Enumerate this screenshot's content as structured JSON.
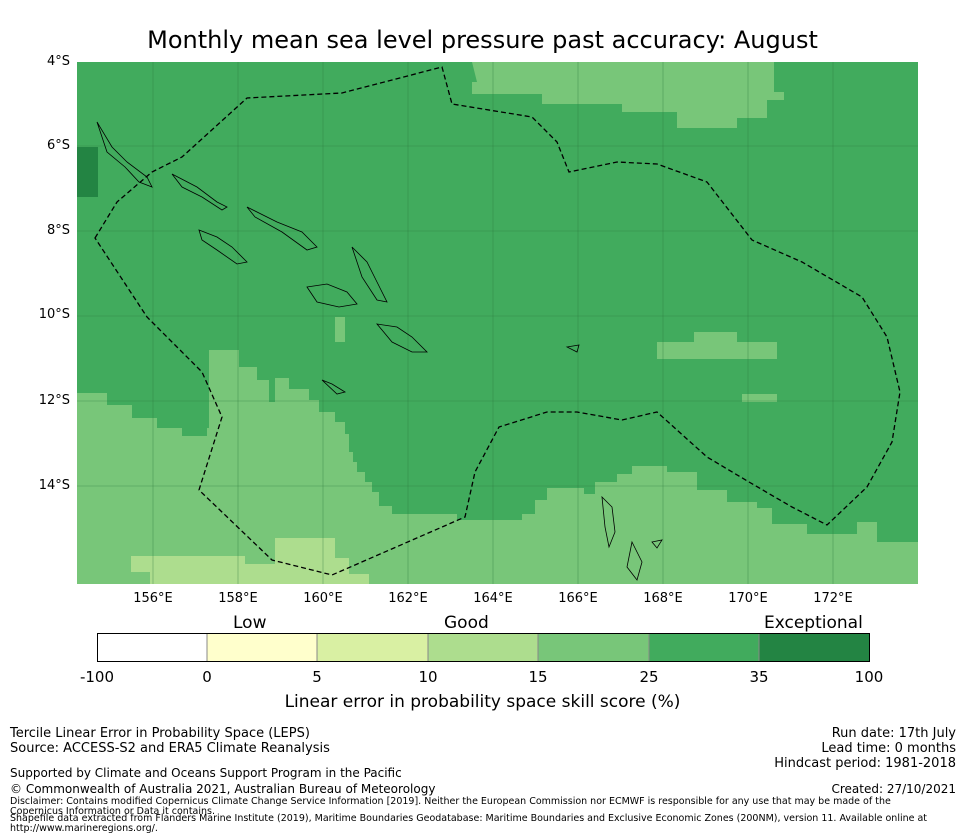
{
  "title": "Monthly mean sea level pressure past accuracy: August",
  "map": {
    "lat_labels": [
      "4°S",
      "6°S",
      "8°S",
      "10°S",
      "12°S",
      "14°S"
    ],
    "lon_labels": [
      "156°E",
      "158°E",
      "160°E",
      "162°E",
      "164°E",
      "166°E",
      "168°E",
      "170°E",
      "172°E"
    ],
    "colors": {
      "c15_25": "#78c679",
      "c25_35": "#41ab5d",
      "c35_100": "#238443",
      "c10_15": "#addd8e",
      "ocean_base": "#41ab5d"
    }
  },
  "colorbar": {
    "categories": [
      "Low",
      "Good",
      "Exceptional"
    ],
    "ticks": [
      "-100",
      "0",
      "5",
      "10",
      "15",
      "25",
      "35",
      "100"
    ],
    "colors": [
      "#ffffff",
      "#ffffcc",
      "#d9f0a3",
      "#addd8e",
      "#78c679",
      "#41ab5d",
      "#238443"
    ],
    "label": "Linear error in probability space skill score (%)"
  },
  "footer": {
    "method": "Tercile Linear Error in Probability Space (LEPS)",
    "source": "Source: ACCESS-S2 and ERA5 Climate Reanalysis",
    "support": "Supported by Climate and Oceans Support Program in the Pacific",
    "copyright": "© Commonwealth of Australia 2021, Australian Bureau of Meteorology",
    "disclaimer": "Disclaimer: Contains modified Copernicus Climate Change Service Information [2019]. Neither the European Commission nor ECMWF is responsible for any use that may be made of the Copernicus Information or Data it contains.",
    "shapefile": "Shapefile data extracted from Flanders Marine Institute (2019), Maritime Boundaries Geodatabase: Maritime Boundaries and Exclusive Economic Zones (200NM), version 11. Available online at http://www.marineregions.org/.",
    "run_date": "Run date: 17th July",
    "lead_time": "Lead time: 0 months",
    "hindcast": "Hindcast period: 1981-2018",
    "created": "Created: 27/10/2021"
  }
}
